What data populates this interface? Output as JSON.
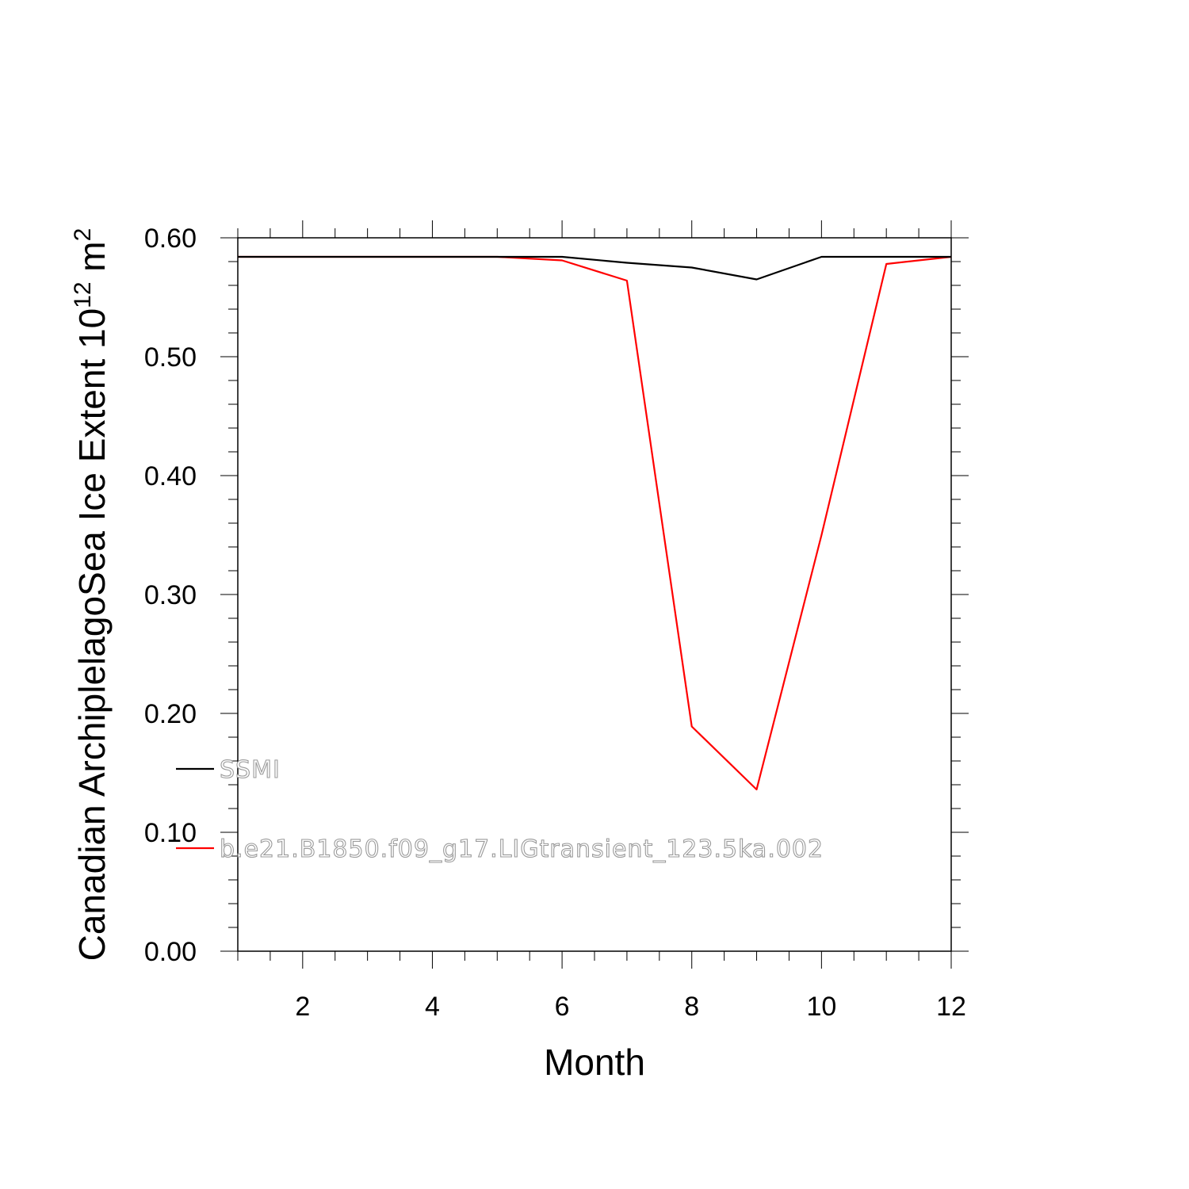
{
  "chart_data": {
    "type": "line",
    "xlabel": "Month",
    "ylabel": {
      "text": "Canadian ArchiplelagoSea Ice Extent 10",
      "superscript1": "12",
      "unit": " m",
      "superscript2": "2"
    },
    "xlim": [
      1,
      12
    ],
    "ylim": [
      0.0,
      0.6
    ],
    "x_ticks": [
      2,
      4,
      6,
      8,
      10,
      12
    ],
    "x_tick_labels": [
      "2",
      "4",
      "6",
      "8",
      "10",
      "12"
    ],
    "y_ticks": [
      0.0,
      0.1,
      0.2,
      0.3,
      0.4,
      0.5,
      0.6
    ],
    "y_tick_labels": [
      "0.00",
      "0.10",
      "0.20",
      "0.30",
      "0.40",
      "0.50",
      "0.60"
    ],
    "grid": false,
    "legend_position": "lower-left",
    "x": [
      1,
      2,
      3,
      4,
      5,
      6,
      7,
      8,
      9,
      10,
      11,
      12
    ],
    "series": [
      {
        "name": "SSMI",
        "color": "#000000",
        "values": [
          0.584,
          0.584,
          0.584,
          0.584,
          0.584,
          0.584,
          0.579,
          0.575,
          0.565,
          0.584,
          0.584,
          0.584
        ]
      },
      {
        "name": "b.e21.B1850.f09_g17.LIGtransient_123.5ka.002",
        "color": "#ff0000",
        "values": [
          0.584,
          0.584,
          0.584,
          0.584,
          0.584,
          0.581,
          0.564,
          0.189,
          0.136,
          0.35,
          0.578,
          0.584
        ]
      }
    ]
  }
}
